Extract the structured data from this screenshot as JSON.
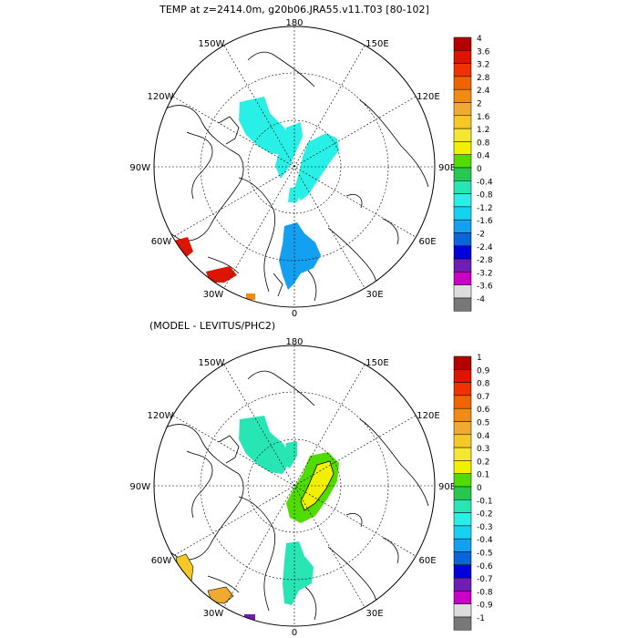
{
  "title": "TEMP at z=2414.0m, g20b06.JRA55.v11.T03 [80-102]",
  "subtitle": "(MODEL - LEVITUS/PHC2)",
  "lon_labels": {
    "top": "180",
    "bottom": "0",
    "left": "90W",
    "right": "90E",
    "w150": "150W",
    "e150": "150E",
    "w120": "120W",
    "e120": "120E",
    "w60": "60W",
    "e60": "60E",
    "w30": "30W",
    "e30": "30E"
  },
  "colorbar_top": {
    "labels": [
      "4",
      "3.6",
      "3.2",
      "2.8",
      "2.4",
      "2",
      "1.6",
      "1.2",
      "0.8",
      "0.4",
      "0",
      "-0.4",
      "-0.8",
      "-1.2",
      "-1.6",
      "-2",
      "-2.4",
      "-2.8",
      "-3.2",
      "-3.6",
      "-4"
    ],
    "colors": [
      "#b40000",
      "#dc1400",
      "#f03200",
      "#f06400",
      "#f08c14",
      "#f0aa32",
      "#f5c828",
      "#f5e632",
      "#f0f000",
      "#50dc00",
      "#28c850",
      "#28e6b4",
      "#28f0e6",
      "#14d2f0",
      "#14a0f0",
      "#0a64dc",
      "#0000dc",
      "#6e1eb4",
      "#c800c8",
      "#dcdcdc",
      "#787878"
    ]
  },
  "colorbar_bottom": {
    "labels": [
      "1",
      "0.9",
      "0.8",
      "0.7",
      "0.6",
      "0.5",
      "0.4",
      "0.3",
      "0.2",
      "0.1",
      "0",
      "-0.1",
      "-0.2",
      "-0.3",
      "-0.4",
      "-0.5",
      "-0.6",
      "-0.7",
      "-0.8",
      "-0.9",
      "-1"
    ],
    "colors": [
      "#b40000",
      "#dc1400",
      "#f03200",
      "#f06400",
      "#f08c14",
      "#f0aa32",
      "#f5c828",
      "#f5e632",
      "#f0f000",
      "#50dc00",
      "#28c850",
      "#28e6b4",
      "#28f0e6",
      "#14d2f0",
      "#14a0f0",
      "#0a64dc",
      "#0000dc",
      "#6e1eb4",
      "#c800c8",
      "#dcdcdc",
      "#787878"
    ]
  }
}
